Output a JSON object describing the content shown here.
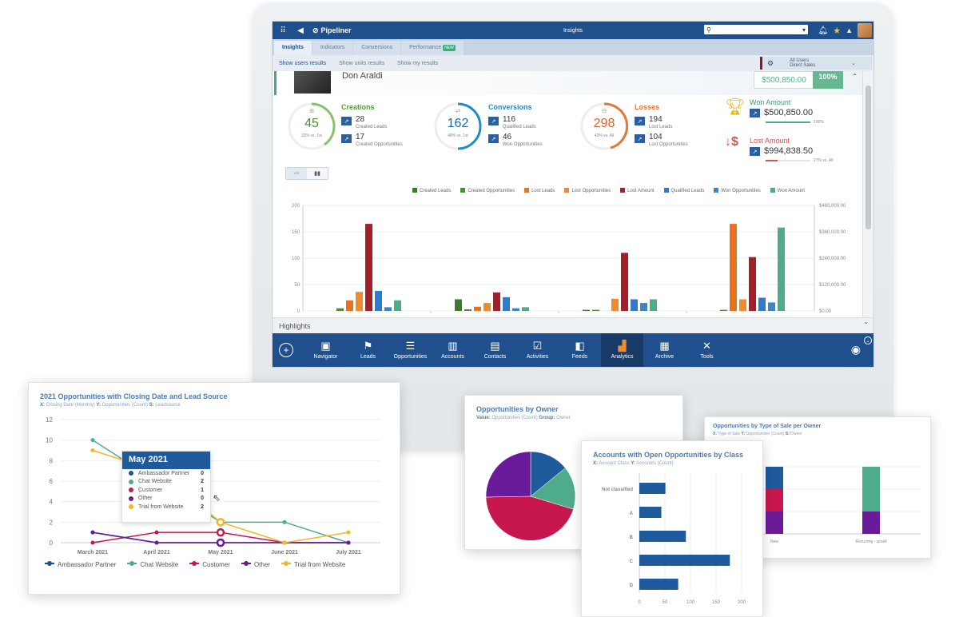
{
  "app": {
    "brand": "Pipeliner",
    "window_title": "Insights",
    "search": {
      "placeholder": "",
      "value": ""
    },
    "tabs": [
      {
        "label": "Insights",
        "active": true
      },
      {
        "label": "Indicators",
        "active": false
      },
      {
        "label": "Conversions",
        "active": false
      },
      {
        "label": "Performance",
        "active": false,
        "badge": "NEW"
      }
    ],
    "subtabs": [
      {
        "label": "Show users results",
        "active": true
      },
      {
        "label": "Show units results",
        "active": false
      },
      {
        "label": "Show my results",
        "active": false
      }
    ],
    "filter": {
      "line1": "All Users",
      "line2": "Direct Sales"
    },
    "user": {
      "name": "Don Araldi",
      "amount": "$500,850.00",
      "pct": "100%"
    },
    "kpis": {
      "creations": {
        "title": "Creations",
        "total": "45",
        "sub": "33% vs. 1st",
        "color": "#6ab04c",
        "items": [
          {
            "value": "28",
            "label": "Created Leads"
          },
          {
            "value": "17",
            "label": "Created Opportunities"
          }
        ]
      },
      "conversions": {
        "title": "Conversions",
        "total": "162",
        "sub": "48% vs. 1st",
        "color": "#1e8fc6",
        "items": [
          {
            "value": "116",
            "label": "Qualified Leads"
          },
          {
            "value": "46",
            "label": "Won Opportunities"
          }
        ]
      },
      "losses": {
        "title": "Losses",
        "total": "298",
        "sub": "43% vs. All",
        "color": "#e5773a",
        "items": [
          {
            "value": "194",
            "label": "Lost Leads"
          },
          {
            "value": "104",
            "label": "Lost Opportunities"
          }
        ]
      },
      "won": {
        "title": "Won Amount",
        "value": "$500,850.00",
        "pct": "100%",
        "color": "#3a9a78"
      },
      "lost": {
        "title": "Lost Amount",
        "value": "$994,838.50",
        "pct": "27% vs. All",
        "color": "#d9534f"
      }
    },
    "highlights_label": "Highlights",
    "navbar": [
      {
        "label": "Navigator",
        "icon": "monitor-chart-icon",
        "glyph": "▣"
      },
      {
        "label": "Leads",
        "icon": "flag-icon",
        "glyph": "⚑"
      },
      {
        "label": "Opportunities",
        "icon": "stack-icon",
        "glyph": "☰"
      },
      {
        "label": "Accounts",
        "icon": "building-icon",
        "glyph": "▥"
      },
      {
        "label": "Contacts",
        "icon": "contact-card-icon",
        "glyph": "▤"
      },
      {
        "label": "Activities",
        "icon": "checkbox-icon",
        "glyph": "☑"
      },
      {
        "label": "Feeds",
        "icon": "feed-icon",
        "glyph": "◧"
      },
      {
        "label": "Analytics",
        "icon": "analytics-icon",
        "glyph": "▟",
        "active": true
      },
      {
        "label": "Archive",
        "icon": "archive-icon",
        "glyph": "▦"
      },
      {
        "label": "Tools",
        "icon": "tools-icon",
        "glyph": "✕"
      }
    ]
  },
  "chart_data": [
    {
      "type": "bar",
      "title": "Insights by user",
      "legend": [
        "Created Leads",
        "Created Opportunities",
        "Lost Leads",
        "Lost Opportunities",
        "Lost Amount",
        "Qualified Leads",
        "Won Opportunities",
        "Won Amount"
      ],
      "colors": [
        "#3d7a2c",
        "#4f8a3a",
        "#e8731c",
        "#f08a2c",
        "#a3202a",
        "#2f7bd0",
        "#3a86c8",
        "#4fac8a"
      ],
      "y_left": {
        "ticks": [
          "0",
          "50",
          "100",
          "150",
          "200"
        ],
        "range": [
          0,
          200
        ]
      },
      "y_right": {
        "ticks": [
          "$0.00",
          "$120,000.00",
          "$240,000.00",
          "$360,000.00",
          "$480,000.00"
        ],
        "range": [
          0,
          480000
        ]
      },
      "groups": [
        {
          "values": [
            0,
            5,
            20,
            36,
            165,
            38,
            7,
            20
          ]
        },
        {
          "values": [
            22,
            3,
            8,
            15,
            35,
            26,
            5,
            7
          ]
        },
        {
          "values": [
            2,
            2,
            0,
            23,
            110,
            22,
            15,
            22
          ]
        },
        {
          "values": [
            0,
            2,
            165,
            22,
            102,
            25,
            16,
            158
          ]
        }
      ]
    },
    {
      "type": "line",
      "title": "2021 Opportunities with Closing Date and Lead Source",
      "subtitle": {
        "x_label": "X:",
        "x": "Closing Date (Monthly)",
        "y_label": "Y:",
        "y": "Opportunities (Count)",
        "s_label": "S:",
        "s": "Leadsource"
      },
      "x": [
        "March 2021",
        "April 2021",
        "May 2021",
        "June 2021",
        "July 2021"
      ],
      "ylim": [
        0,
        12
      ],
      "y_ticks": [
        "0",
        "2",
        "4",
        "6",
        "8",
        "10",
        "12"
      ],
      "series": [
        {
          "name": "Ambassador Partner",
          "color": "#1f4f8c",
          "values": [
            1,
            0,
            0,
            0,
            0
          ]
        },
        {
          "name": "Chat Website",
          "color": "#4fac8a",
          "values": [
            10,
            6,
            2,
            2,
            0
          ]
        },
        {
          "name": "Customer",
          "color": "#c8174f",
          "values": [
            0,
            1,
            1,
            0,
            0
          ]
        },
        {
          "name": "Other",
          "color": "#6a1b9a",
          "values": [
            1,
            0,
            0,
            0,
            0
          ]
        },
        {
          "name": "Trial from Website",
          "color": "#f2b824",
          "values": [
            9,
            7,
            2,
            0,
            1
          ]
        }
      ],
      "tooltip": {
        "title": "May 2021",
        "rows": [
          {
            "name": "Ambassador Partner",
            "value": "0",
            "color": "#1f4f8c"
          },
          {
            "name": "Chat Website",
            "value": "2",
            "color": "#4fac8a"
          },
          {
            "name": "Customer",
            "value": "1",
            "color": "#c8174f"
          },
          {
            "name": "Other",
            "value": "0",
            "color": "#6a1b9a"
          },
          {
            "name": "Trial from Website",
            "value": "2",
            "color": "#f2b824"
          }
        ]
      }
    },
    {
      "type": "pie",
      "title": "Opportunities by Owner",
      "subtitle": {
        "value_label": "Value:",
        "value": "Opportunities (Count)",
        "group_label": "Group:",
        "group": "Owner"
      },
      "slices": [
        {
          "color": "#1f5a9c",
          "value": 15
        },
        {
          "color": "#4fac8a",
          "value": 14
        },
        {
          "color": "#c8174f",
          "value": 46
        },
        {
          "color": "#6a1b9a",
          "value": 25
        }
      ]
    },
    {
      "type": "bar",
      "orientation": "horizontal",
      "title": "Accounts with Open Opportunities by Class",
      "subtitle": {
        "x_label": "X:",
        "x": "Account Class",
        "y_label": "Y:",
        "y": "Accounts (Count)"
      },
      "categories": [
        "Not classified",
        "A",
        "B",
        "C",
        "D"
      ],
      "values": [
        51,
        43,
        91,
        177,
        76
      ],
      "x_ticks": [
        "0",
        "50",
        "100",
        "150",
        "200"
      ],
      "xlim": [
        0,
        200
      ],
      "color": "#1f5a9c"
    },
    {
      "type": "bar",
      "stacked": true,
      "title": "Opportunities by Type of Sale per Owner",
      "subtitle": {
        "x_label": "X:",
        "x": "Type of Sale",
        "y_label": "Y:",
        "y": "Opportunities (Count)",
        "s_label": "S:",
        "s": "Owner"
      },
      "categories": [
        "New",
        "Recurring - upsell"
      ],
      "series": [
        {
          "color": "#6a1b9a",
          "values": [
            1,
            1
          ]
        },
        {
          "color": "#c8174f",
          "values": [
            1,
            0
          ]
        },
        {
          "color": "#1f5a9c",
          "values": [
            1,
            0
          ]
        },
        {
          "color": "#4fac8a",
          "values": [
            0,
            2
          ]
        }
      ]
    }
  ]
}
